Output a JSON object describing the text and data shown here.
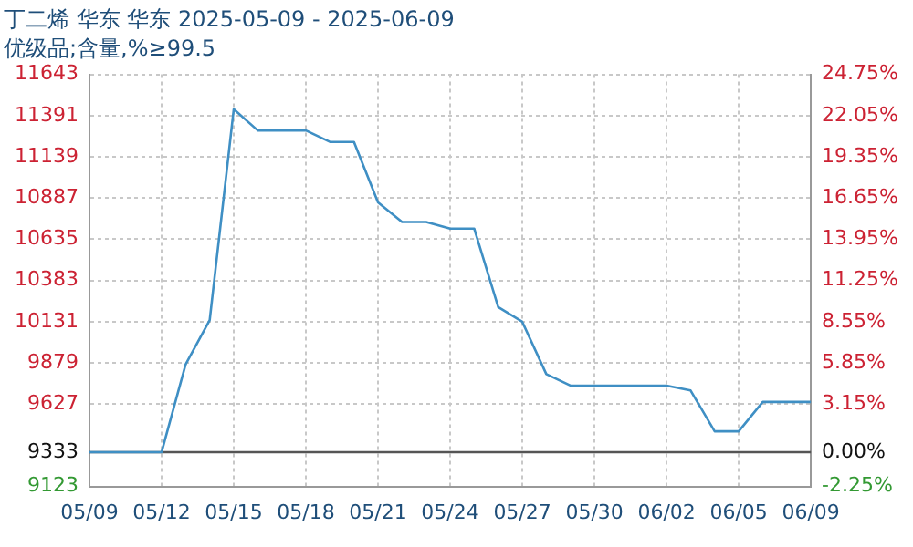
{
  "chart_data": {
    "type": "line",
    "title": "丁二烯 华东 华东 2025-05-09 - 2025-06-09",
    "subtitle": "优级品;含量,%≥99.5",
    "categories": [
      "05/09",
      null,
      null,
      "05/12",
      null,
      null,
      "05/15",
      null,
      null,
      "05/18",
      null,
      null,
      "05/21",
      null,
      null,
      "05/24",
      null,
      null,
      "05/27",
      null,
      null,
      "05/30",
      null,
      null,
      "06/02",
      null,
      null,
      "06/05",
      null,
      null,
      "06/09"
    ],
    "series": [
      {
        "color": "#3f8fc4",
        "values": [
          9333,
          9333,
          9333,
          9333,
          9870,
          10140,
          11430,
          11300,
          11300,
          11300,
          11230,
          11230,
          10860,
          10740,
          10740,
          10700,
          10700,
          10220,
          10130,
          9810,
          9740,
          9740,
          9740,
          9740,
          9740,
          9710,
          9460,
          9460,
          9640,
          9640,
          9640
        ]
      }
    ],
    "ylim": [
      9123,
      11643
    ],
    "yticks": [
      9123,
      9333,
      9627,
      9879,
      10131,
      10383,
      10635,
      10887,
      11139,
      11391,
      11643
    ],
    "y2lim": [
      -2.25,
      24.75
    ],
    "y2ticks": [
      {
        "value": -2.25,
        "label": "-2.25%"
      },
      {
        "value": 0,
        "label": "0.00%"
      },
      {
        "value": 3.15,
        "label": "3.15%"
      },
      {
        "value": 5.85,
        "label": "5.85%"
      },
      {
        "value": 8.55,
        "label": "8.55%"
      },
      {
        "value": 11.25,
        "label": "11.25%"
      },
      {
        "value": 13.95,
        "label": "13.95%"
      },
      {
        "value": 16.65,
        "label": "16.65%"
      },
      {
        "value": 19.35,
        "label": "19.35%"
      },
      {
        "value": 22.05,
        "label": "22.05%"
      },
      {
        "value": 24.75,
        "label": "24.75%"
      }
    ],
    "ref_lines": [
      {
        "axis": "y",
        "value": 9333,
        "color": "#555555"
      }
    ],
    "grid": true,
    "legend": false,
    "marker": "none",
    "line_style": "solid"
  }
}
